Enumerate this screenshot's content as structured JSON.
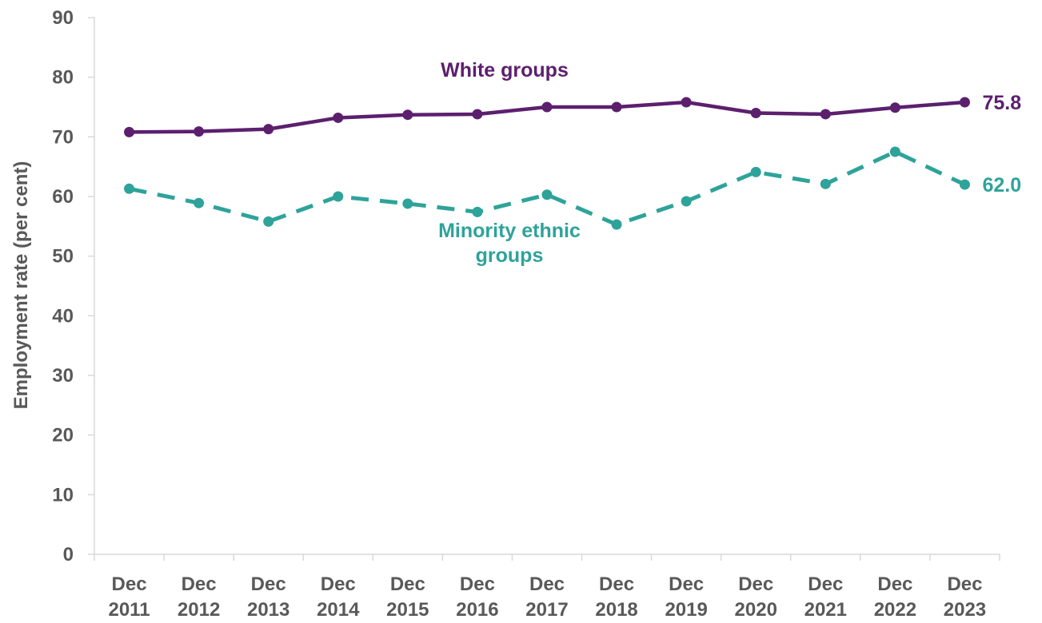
{
  "chart_data": {
    "type": "line",
    "categories": [
      [
        "Dec",
        "2011"
      ],
      [
        "Dec",
        "2012"
      ],
      [
        "Dec",
        "2013"
      ],
      [
        "Dec",
        "2014"
      ],
      [
        "Dec",
        "2015"
      ],
      [
        "Dec",
        "2016"
      ],
      [
        "Dec",
        "2017"
      ],
      [
        "Dec",
        "2018"
      ],
      [
        "Dec",
        "2019"
      ],
      [
        "Dec",
        "2020"
      ],
      [
        "Dec",
        "2021"
      ],
      [
        "Dec",
        "2022"
      ],
      [
        "Dec",
        "2023"
      ]
    ],
    "ylabel": "Employment rate (per cent)",
    "ylim": [
      0,
      90
    ],
    "yticks": [
      0,
      10,
      20,
      30,
      40,
      50,
      60,
      70,
      80,
      90
    ],
    "grid": false,
    "series": [
      {
        "name": "White groups",
        "label_lines": [
          "White groups"
        ],
        "color": "#5c1f6e",
        "dash": "solid",
        "values": [
          70.8,
          70.9,
          71.3,
          73.2,
          73.7,
          73.8,
          75.0,
          75.0,
          75.8,
          74.0,
          73.8,
          74.9,
          75.8
        ],
        "end_label": "75.8"
      },
      {
        "name": "Minority ethnic groups",
        "label_lines": [
          "Minority ethnic",
          "groups"
        ],
        "color": "#2ea39a",
        "dash": "dashed",
        "values": [
          61.3,
          58.9,
          55.8,
          60.0,
          58.8,
          57.4,
          60.3,
          55.3,
          59.2,
          64.1,
          62.1,
          67.5,
          62.0
        ],
        "end_label": "62.0"
      }
    ]
  }
}
